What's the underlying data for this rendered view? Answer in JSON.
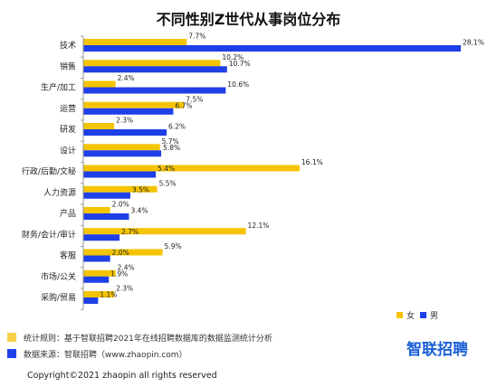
{
  "chart_data": {
    "type": "bar",
    "orientation": "horizontal",
    "title": "不同性别Z世代从事岗位分布",
    "categories": [
      "技术",
      "销售",
      "生产/加工",
      "运营",
      "研发",
      "设计",
      "行政/后勤/文秘",
      "人力资源",
      "产品",
      "财务/会计/审计",
      "客服",
      "市场/公关",
      "采购/贸易"
    ],
    "series": [
      {
        "name": "女",
        "color": "#f5c400",
        "values": [
          7.7,
          10.2,
          2.4,
          7.5,
          2.3,
          5.7,
          16.1,
          5.5,
          2.0,
          12.1,
          5.9,
          2.4,
          2.3
        ],
        "labels": [
          "7.7%",
          "10.2%",
          "2.4%",
          "7.5%",
          "2.3%",
          "5.7%",
          "16.1%",
          "5.5%",
          "2.0%",
          "12.1%",
          "5.9%",
          "2.4%",
          "2.3%"
        ]
      },
      {
        "name": "男",
        "color": "#1f3fe8",
        "values": [
          28.1,
          10.7,
          10.6,
          6.7,
          6.2,
          5.8,
          5.4,
          3.5,
          3.4,
          2.7,
          2.0,
          1.9,
          1.1
        ],
        "labels": [
          "28.1%",
          "10.7%",
          "10.6%",
          "6.7%",
          "6.2%",
          "5.8%",
          "5.4%",
          "3.5%",
          "3.4%",
          "2.7%",
          "2.0%",
          "1.9%",
          "1.1%"
        ]
      }
    ],
    "xlim": [
      0,
      28.1
    ],
    "legend_position": "bottom-right",
    "grid": false
  },
  "notes": [
    {
      "text": "统计规则：基于智联招聘2021年在线招聘数据库的数据监测统计分析",
      "color": "#f5d24a"
    },
    {
      "text": "数据来源：智联招聘（www.zhaopin.com）",
      "color": "#1f3fe8"
    }
  ],
  "brand": "智联招聘",
  "copyright": "Copyright©2021 zhaopin  all rights reserved"
}
